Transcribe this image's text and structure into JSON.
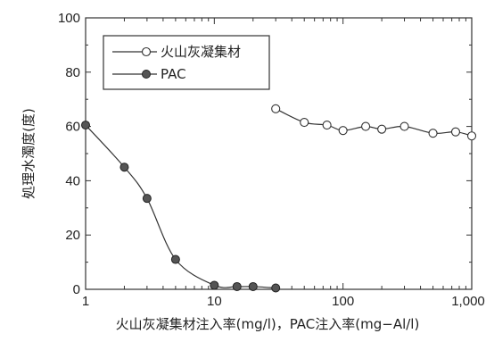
{
  "chart_data": {
    "type": "line",
    "xscale": "log",
    "xlim": [
      1,
      1000
    ],
    "ylim": [
      0,
      100
    ],
    "xticks": [
      1,
      10,
      100,
      1000
    ],
    "xtick_labels": [
      "1",
      "10",
      "100",
      "1,000"
    ],
    "yticks": [
      0,
      20,
      40,
      60,
      80,
      100
    ],
    "ytick_labels": [
      "0",
      "20",
      "40",
      "60",
      "80",
      "100"
    ],
    "xlabel": "火山灰凝集材注入率(mg/l)，PAC注入率(mg−Al/l)",
    "ylabel": "処理水濁度(度)",
    "legend_position": "top-left",
    "series": [
      {
        "name": "火山灰凝集材",
        "marker": "open-circle",
        "color": "#333333",
        "x": [
          30,
          50,
          75,
          100,
          150,
          200,
          300,
          500,
          750,
          1000
        ],
        "y": [
          66.5,
          61.5,
          60.5,
          58.5,
          60,
          59,
          60,
          57.5,
          58,
          56.5
        ]
      },
      {
        "name": "PAC",
        "marker": "filled-circle",
        "color": "#333333",
        "x": [
          1,
          2,
          3,
          5,
          10,
          15,
          20,
          30
        ],
        "y": [
          60.5,
          45,
          33.5,
          11,
          1.5,
          1,
          1,
          0.5
        ]
      }
    ]
  }
}
